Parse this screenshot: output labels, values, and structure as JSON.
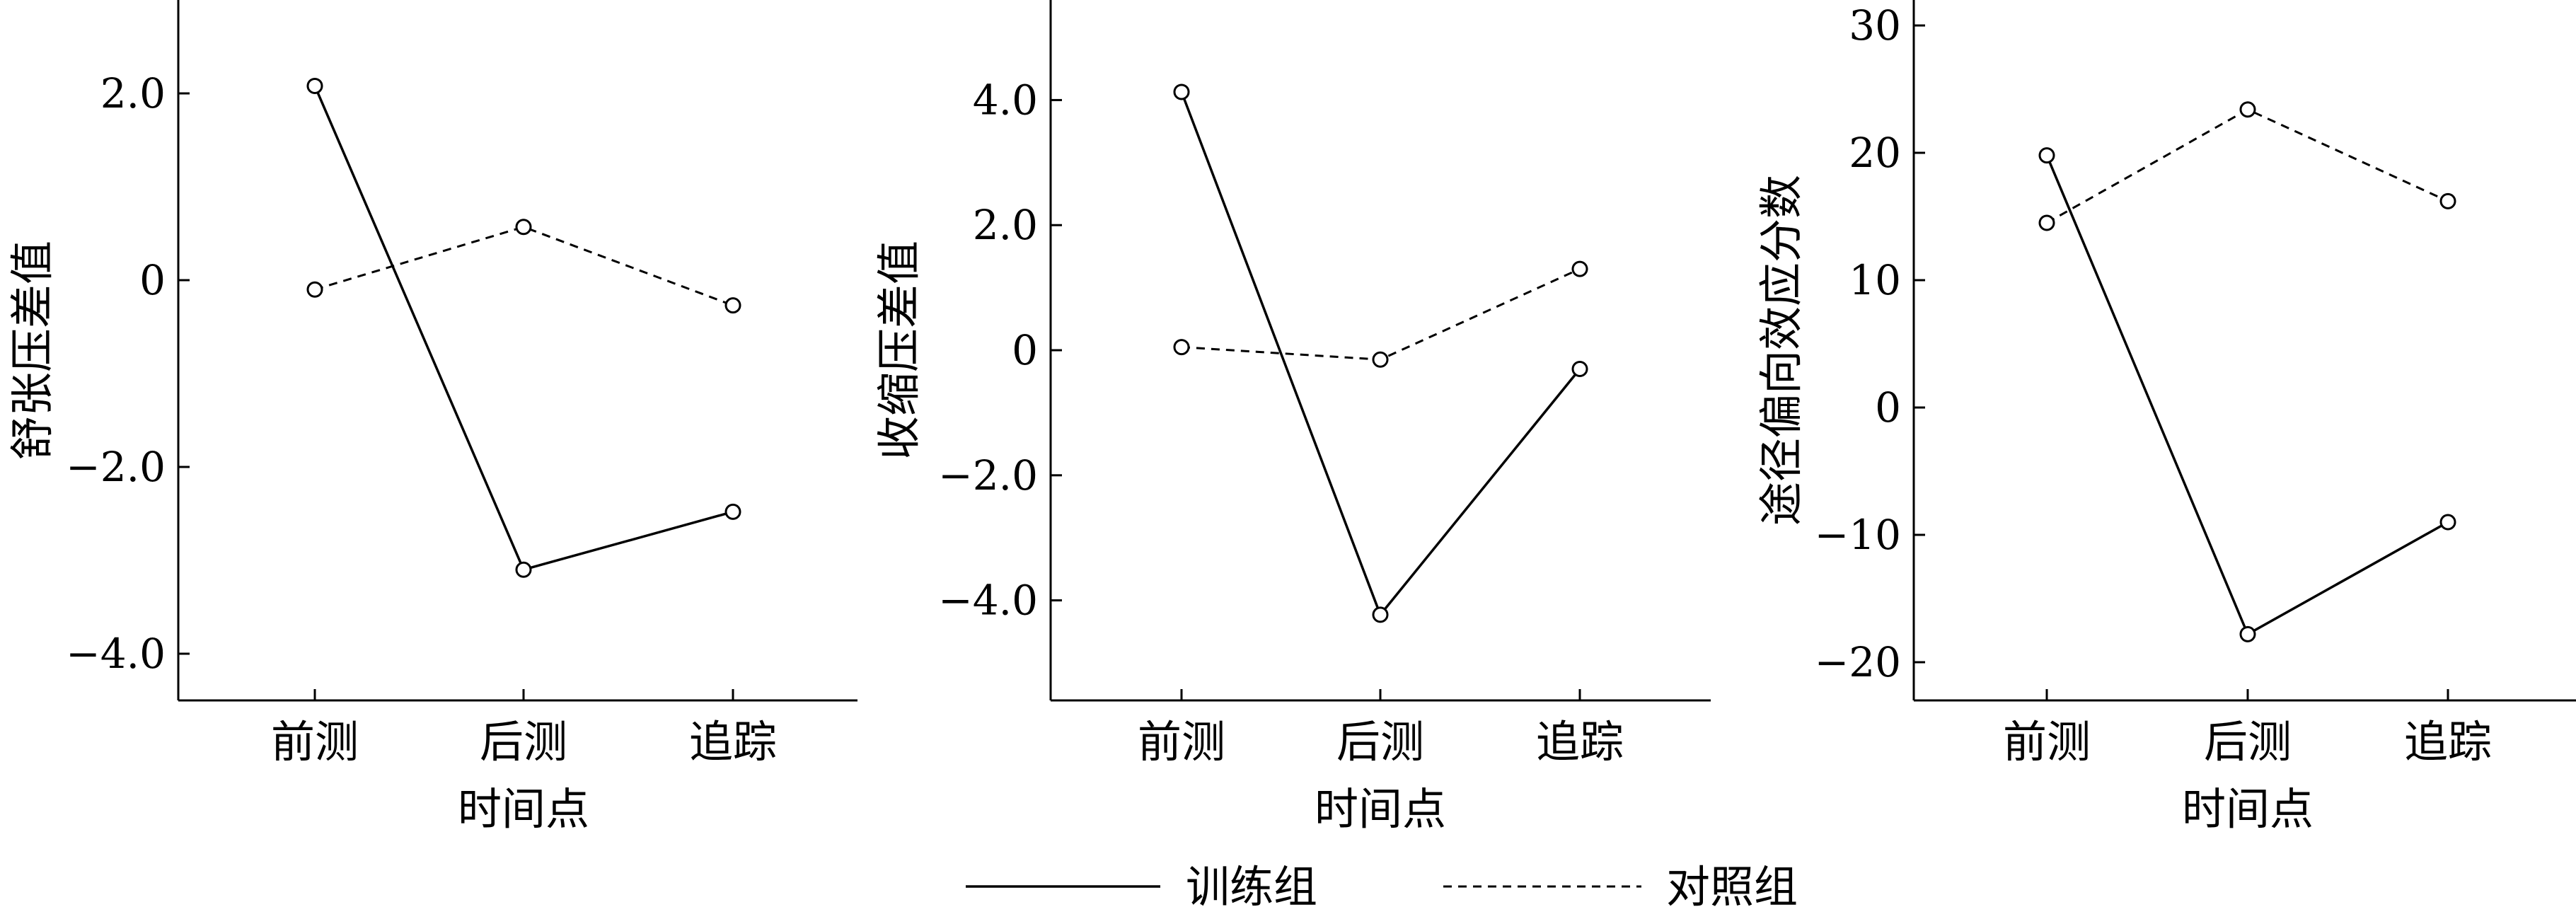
{
  "colors": {
    "ink": "#000000",
    "background": "#ffffff"
  },
  "legend": {
    "position": "bottom-center",
    "items": [
      {
        "label": "训练组",
        "style": "solid"
      },
      {
        "label": "对照组",
        "style": "dashed"
      }
    ]
  },
  "chart_data": [
    {
      "type": "line",
      "categories": [
        "前测",
        "后测",
        "追踪"
      ],
      "xlabel": "时间点",
      "ylabel": "舒张压差值",
      "ylim": [
        -4.5,
        3.0
      ],
      "yticks": [
        2.0,
        0,
        -2.0,
        -4.0
      ],
      "ytick_labels": [
        "2.0",
        "0",
        "−2.0",
        "−4.0"
      ],
      "grid": false,
      "series": [
        {
          "name": "训练组",
          "values": [
            2.08,
            -3.1,
            -2.48
          ]
        },
        {
          "name": "对照组",
          "values": [
            -0.1,
            0.57,
            -0.27
          ]
        }
      ]
    },
    {
      "type": "line",
      "categories": [
        "前测",
        "后测",
        "追踪"
      ],
      "xlabel": "时间点",
      "ylabel": "收缩压差值",
      "ylim": [
        -5.6,
        5.6
      ],
      "yticks": [
        4.0,
        2.0,
        0,
        -2.0,
        -4.0
      ],
      "ytick_labels": [
        "4.0",
        "2.0",
        "0",
        "−2.0",
        "−4.0"
      ],
      "grid": false,
      "series": [
        {
          "name": "训练组",
          "values": [
            4.13,
            -4.23,
            -0.3
          ]
        },
        {
          "name": "对照组",
          "values": [
            0.05,
            -0.15,
            1.3
          ]
        }
      ]
    },
    {
      "type": "line",
      "categories": [
        "前测",
        "后测",
        "追踪"
      ],
      "xlabel": "时间点",
      "ylabel": "途径偏向效应分数",
      "ylim": [
        -23,
        32
      ],
      "yticks": [
        30,
        20,
        10,
        0,
        -10,
        -20
      ],
      "ytick_labels": [
        "30",
        "20",
        "10",
        "0",
        "−10",
        "−20"
      ],
      "grid": false,
      "series": [
        {
          "name": "训练组",
          "values": [
            19.8,
            -17.8,
            -9.0
          ]
        },
        {
          "name": "对照组",
          "values": [
            14.5,
            23.4,
            16.2
          ]
        }
      ]
    }
  ]
}
